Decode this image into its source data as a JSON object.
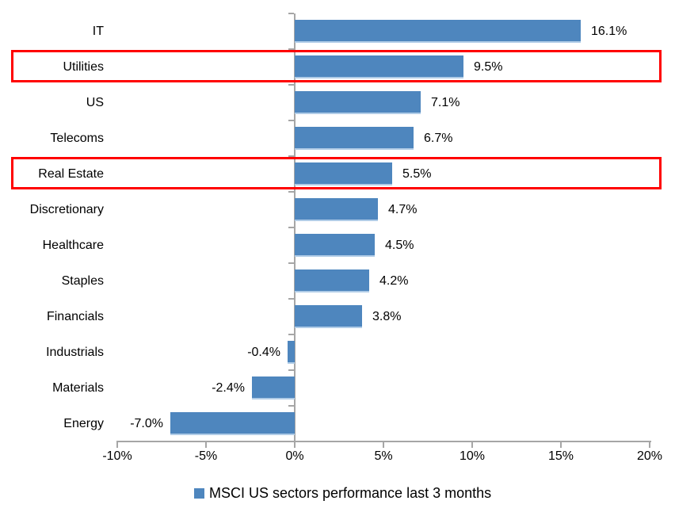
{
  "chart_data": {
    "type": "bar",
    "orientation": "horizontal",
    "title": "",
    "xlabel": "",
    "ylabel": "",
    "categories": [
      "IT",
      "Utilities",
      "US",
      "Telecoms",
      "Real Estate",
      "Discretionary",
      "Healthcare",
      "Staples",
      "Financials",
      "Industrials",
      "Materials",
      "Energy"
    ],
    "values": [
      16.1,
      9.5,
      7.1,
      6.7,
      5.5,
      4.7,
      4.5,
      4.2,
      3.8,
      -0.4,
      -2.4,
      -7.0
    ],
    "value_labels": [
      "16.1%",
      "9.5%",
      "7.1%",
      "6.7%",
      "5.5%",
      "4.7%",
      "4.5%",
      "4.2%",
      "3.8%",
      "-0.4%",
      "-2.4%",
      "-7.0%"
    ],
    "xlim": [
      -10,
      20
    ],
    "x_tick_values": [
      -10,
      -5,
      0,
      5,
      10,
      15,
      20
    ],
    "x_tick_labels": [
      "-10%",
      "-5%",
      "0%",
      "5%",
      "10%",
      "15%",
      "20%"
    ],
    "grid": false,
    "legend_position": "bottom",
    "legend_label": "MSCI US sectors performance last 3 months",
    "highlighted_categories": [
      "Utilities",
      "Real Estate"
    ],
    "colors": {
      "bar": "#4E86BE",
      "bar_bottom_edge": "#B0CCE7",
      "axis": "#A6A6A6",
      "highlight_border": "#FF0000",
      "text": "#000000"
    }
  }
}
